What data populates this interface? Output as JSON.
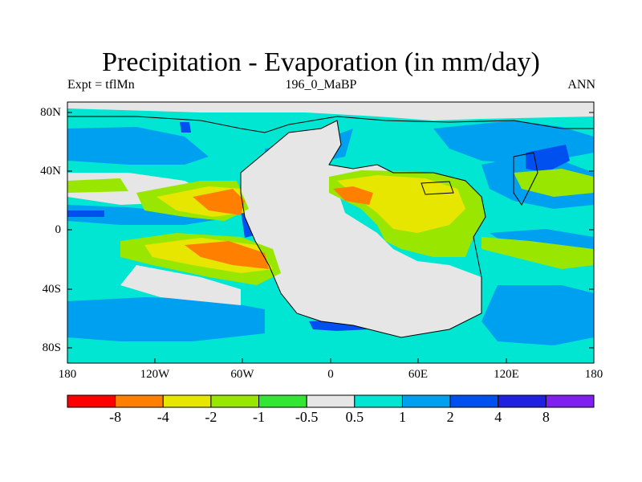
{
  "title": "Precipitation - Evaporation (in mm/day)",
  "subtitle_left": "Expt = tflMn",
  "subtitle_center": "196_0_MaBP",
  "subtitle_right": "ANN",
  "lat_labels": [
    "80N",
    "40N",
    "0",
    "40S",
    "80S"
  ],
  "lon_labels": [
    "180",
    "120W",
    "60W",
    "0",
    "60E",
    "120E",
    "180"
  ],
  "colorbar": {
    "colors": [
      "#ff0000",
      "#ff8000",
      "#e6e600",
      "#99e600",
      "#33e633",
      "#e6e6e6",
      "#00e6d2",
      "#00a0f0",
      "#0050f0",
      "#2020e0",
      "#8020f0"
    ],
    "labels": [
      "-8",
      "-4",
      "-2",
      "-1",
      "-0.5",
      "0.5",
      "1",
      "2",
      "4",
      "8"
    ]
  },
  "legend_colors": {
    "ocean_wet_band": "#00e6d2",
    "land_dry": "#e6e6e6",
    "dry_yellow": "#e6e600",
    "dry_green": "#99e600",
    "dry_orange": "#ff8000",
    "wet_blue": "#00a0f0",
    "wet_dark_blue": "#0050f0",
    "coastline": "#000000"
  }
}
